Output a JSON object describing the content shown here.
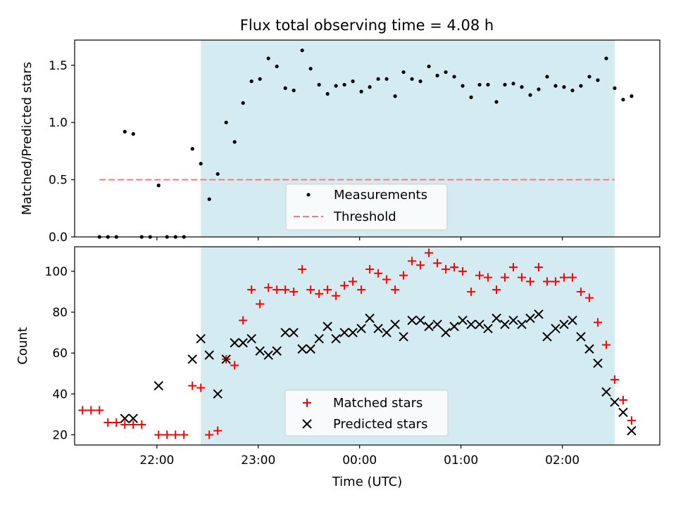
{
  "figure": {
    "title": "Flux total observing time = 4.08 h"
  },
  "chart_data": [
    {
      "type": "scatter",
      "title": "Flux total observing time = 4.08 h",
      "ylabel": "Matched/Predicted stars",
      "xlabel": "",
      "x_ticks": [
        "22:00",
        "23:00",
        "00:00",
        "01:00",
        "02:00"
      ],
      "x_tick_values_min_from_21": [
        60,
        120,
        180,
        240,
        300
      ],
      "xlim_min_from_21": [
        11.3,
        357.7
      ],
      "ylim": [
        0,
        1.72
      ],
      "y_ticks": [
        0.0,
        0.5,
        1.0,
        1.5
      ],
      "y_tick_labels": [
        "0.0",
        "0.5",
        "1.0",
        "1.5"
      ],
      "shaded_interval_min_from_21": [
        86,
        331
      ],
      "shade_color": "#d4ebf1",
      "legend": {
        "placement": "lower-center",
        "entries": [
          "Measurements",
          "Threshold"
        ]
      },
      "threshold": {
        "name": "Threshold",
        "value": 0.5,
        "x_range_min_from_21": [
          26,
          331
        ],
        "color": "#f47c7c",
        "style": "dashed"
      },
      "series": [
        {
          "name": "Measurements",
          "color": "#000000",
          "marker": "dot",
          "points": [
            [
              26,
              0
            ],
            [
              31,
              0
            ],
            [
              36,
              0
            ],
            [
              41,
              0.92
            ],
            [
              46,
              0.9
            ],
            [
              51,
              0
            ],
            [
              56,
              0
            ],
            [
              61,
              0.45
            ],
            [
              66,
              0
            ],
            [
              71,
              0
            ],
            [
              76,
              0
            ],
            [
              81,
              0.77
            ],
            [
              86,
              0.64
            ],
            [
              91,
              0.33
            ],
            [
              96,
              0.55
            ],
            [
              101,
              1.0
            ],
            [
              106,
              0.83
            ],
            [
              111,
              1.17
            ],
            [
              116,
              1.36
            ],
            [
              121,
              1.38
            ],
            [
              126,
              1.56
            ],
            [
              131,
              1.49
            ],
            [
              136,
              1.3
            ],
            [
              141,
              1.28
            ],
            [
              146,
              1.63
            ],
            [
              151,
              1.47
            ],
            [
              156,
              1.33
            ],
            [
              161,
              1.25
            ],
            [
              166,
              1.32
            ],
            [
              171,
              1.33
            ],
            [
              176,
              1.36
            ],
            [
              181,
              1.27
            ],
            [
              186,
              1.31
            ],
            [
              191,
              1.38
            ],
            [
              196,
              1.38
            ],
            [
              201,
              1.23
            ],
            [
              206,
              1.44
            ],
            [
              211,
              1.38
            ],
            [
              216,
              1.36
            ],
            [
              221,
              1.49
            ],
            [
              226,
              1.41
            ],
            [
              231,
              1.44
            ],
            [
              236,
              1.4
            ],
            [
              241,
              1.32
            ],
            [
              246,
              1.22
            ],
            [
              251,
              1.33
            ],
            [
              256,
              1.33
            ],
            [
              261,
              1.18
            ],
            [
              266,
              1.33
            ],
            [
              271,
              1.34
            ],
            [
              276,
              1.31
            ],
            [
              281,
              1.24
            ],
            [
              286,
              1.29
            ],
            [
              291,
              1.4
            ],
            [
              296,
              1.32
            ],
            [
              301,
              1.31
            ],
            [
              306,
              1.28
            ],
            [
              311,
              1.32
            ],
            [
              316,
              1.4
            ],
            [
              321,
              1.37
            ],
            [
              326,
              1.56
            ],
            [
              331,
              1.3
            ],
            [
              336,
              1.2
            ],
            [
              341,
              1.23
            ]
          ]
        }
      ]
    },
    {
      "type": "scatter",
      "xlabel": "Time (UTC)",
      "ylabel": "Count",
      "x_ticks": [
        "22:00",
        "23:00",
        "00:00",
        "01:00",
        "02:00"
      ],
      "x_tick_values_min_from_21": [
        60,
        120,
        180,
        240,
        300
      ],
      "xlim_min_from_21": [
        11.3,
        357.7
      ],
      "ylim": [
        15,
        112
      ],
      "y_ticks": [
        20,
        40,
        60,
        80,
        100
      ],
      "y_tick_labels": [
        "20",
        "40",
        "60",
        "80",
        "100"
      ],
      "shaded_interval_min_from_21": [
        86,
        331
      ],
      "shade_color": "#d4ebf1",
      "legend": {
        "placement": "lower-center",
        "entries": [
          "Matched stars",
          "Predicted stars"
        ]
      },
      "series": [
        {
          "name": "Matched stars",
          "color": "#ff0000",
          "marker": "plus",
          "points": [
            [
              16,
              32
            ],
            [
              21,
              32
            ],
            [
              26,
              32
            ],
            [
              31,
              26
            ],
            [
              36,
              26
            ],
            [
              41,
              25
            ],
            [
              46,
              25
            ],
            [
              51,
              25
            ],
            [
              61,
              20
            ],
            [
              66,
              20
            ],
            [
              71,
              20
            ],
            [
              76,
              20
            ],
            [
              81,
              44
            ],
            [
              86,
              43
            ],
            [
              91,
              20
            ],
            [
              96,
              22
            ],
            [
              101,
              57
            ],
            [
              106,
              54
            ],
            [
              111,
              76
            ],
            [
              116,
              91
            ],
            [
              121,
              84
            ],
            [
              126,
              92
            ],
            [
              131,
              91
            ],
            [
              136,
              91
            ],
            [
              141,
              90
            ],
            [
              146,
              101
            ],
            [
              151,
              91
            ],
            [
              156,
              89
            ],
            [
              161,
              91
            ],
            [
              166,
              88
            ],
            [
              171,
              93
            ],
            [
              176,
              95
            ],
            [
              181,
              91
            ],
            [
              186,
              101
            ],
            [
              191,
              99
            ],
            [
              196,
              96
            ],
            [
              201,
              91
            ],
            [
              206,
              98
            ],
            [
              211,
              105
            ],
            [
              216,
              103
            ],
            [
              221,
              109
            ],
            [
              226,
              104
            ],
            [
              231,
              101
            ],
            [
              236,
              102
            ],
            [
              241,
              100
            ],
            [
              246,
              90
            ],
            [
              251,
              98
            ],
            [
              256,
              97
            ],
            [
              261,
              91
            ],
            [
              266,
              97
            ],
            [
              271,
              102
            ],
            [
              276,
              97
            ],
            [
              281,
              95
            ],
            [
              286,
              102
            ],
            [
              291,
              95
            ],
            [
              296,
              95
            ],
            [
              301,
              97
            ],
            [
              306,
              97
            ],
            [
              311,
              90
            ],
            [
              316,
              87
            ],
            [
              321,
              75
            ],
            [
              326,
              64
            ],
            [
              331,
              47
            ],
            [
              336,
              37
            ],
            [
              341,
              27
            ]
          ]
        },
        {
          "name": "Predicted stars",
          "color": "#000000",
          "marker": "x",
          "points": [
            [
              41,
              28
            ],
            [
              46,
              28
            ],
            [
              61,
              44
            ],
            [
              81,
              57
            ],
            [
              86,
              67
            ],
            [
              91,
              59
            ],
            [
              96,
              40
            ],
            [
              101,
              57
            ],
            [
              106,
              65
            ],
            [
              111,
              65
            ],
            [
              116,
              67
            ],
            [
              121,
              61
            ],
            [
              126,
              59
            ],
            [
              131,
              61
            ],
            [
              136,
              70
            ],
            [
              141,
              70
            ],
            [
              146,
              62
            ],
            [
              151,
              62
            ],
            [
              156,
              67
            ],
            [
              161,
              73
            ],
            [
              166,
              67
            ],
            [
              171,
              70
            ],
            [
              176,
              70
            ],
            [
              181,
              72
            ],
            [
              186,
              77
            ],
            [
              191,
              72
            ],
            [
              196,
              70
            ],
            [
              201,
              74
            ],
            [
              206,
              68
            ],
            [
              211,
              76
            ],
            [
              216,
              76
            ],
            [
              221,
              73
            ],
            [
              226,
              74
            ],
            [
              231,
              70
            ],
            [
              236,
              73
            ],
            [
              241,
              76
            ],
            [
              246,
              74
            ],
            [
              251,
              74
            ],
            [
              256,
              72
            ],
            [
              261,
              77
            ],
            [
              266,
              74
            ],
            [
              271,
              76
            ],
            [
              276,
              74
            ],
            [
              281,
              77
            ],
            [
              286,
              79
            ],
            [
              291,
              68
            ],
            [
              296,
              72
            ],
            [
              301,
              74
            ],
            [
              306,
              76
            ],
            [
              311,
              68
            ],
            [
              316,
              62
            ],
            [
              321,
              55
            ],
            [
              326,
              41
            ],
            [
              331,
              36
            ],
            [
              336,
              31
            ],
            [
              341,
              22
            ]
          ]
        }
      ]
    }
  ]
}
